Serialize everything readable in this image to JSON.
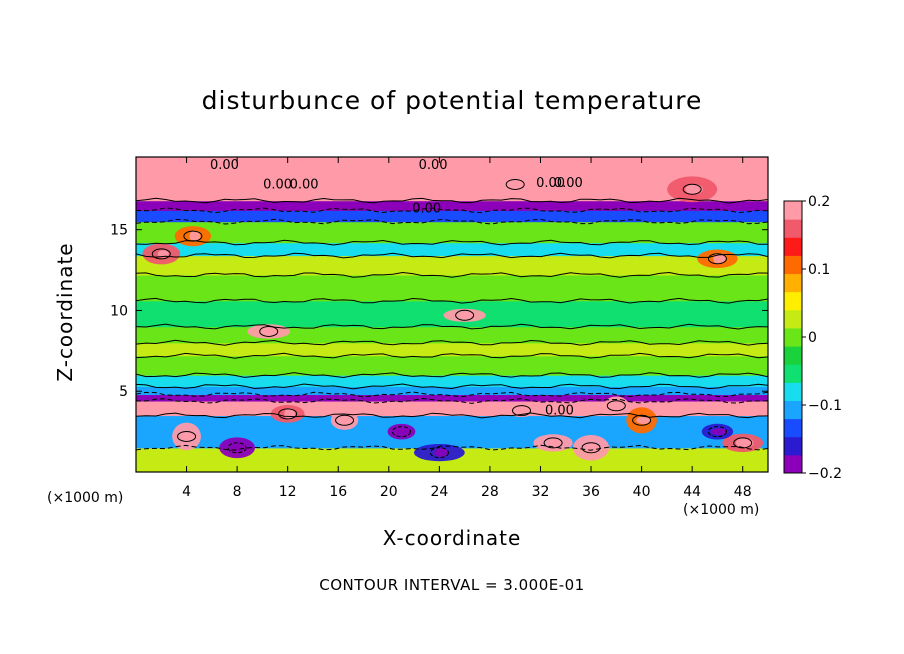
{
  "chart_data": {
    "type": "heatmap",
    "title": "disturbunce of potential temperature",
    "xlabel": "X-coordinate",
    "ylabel": "Z-coordinate",
    "x_unit_note": "(×1000 m)",
    "y_unit_note": "(×1000 m)",
    "footnote": "CONTOUR INTERVAL = 3.000E-01",
    "x_range": [
      0,
      50
    ],
    "y_range": [
      0,
      19.5
    ],
    "x_ticks": [
      4,
      8,
      12,
      16,
      20,
      24,
      28,
      32,
      36,
      40,
      44,
      48
    ],
    "y_ticks": [
      5,
      10,
      15
    ],
    "colorbar": {
      "range": [
        -0.2,
        0.2
      ],
      "tick_values": [
        0.2,
        0.1,
        0,
        -0.1,
        -0.2
      ],
      "tick_labels": [
        "0.2",
        "0.1",
        "0",
        "−0.1",
        "−0.2"
      ],
      "colors": [
        "#8b00b8",
        "#2a1ad0",
        "#1a4cff",
        "#1aa5ff",
        "#18ddee",
        "#10e070",
        "#1ad23c",
        "#6ae618",
        "#c6ea14",
        "#ffee00",
        "#ffb000",
        "#ff6a00",
        "#ff1a1a",
        "#f05a6a",
        "#ff9aa8"
      ]
    },
    "contour_interval": 0.3,
    "contour_labels": [
      {
        "x": 7.0,
        "z": 19.0,
        "text": "0.00"
      },
      {
        "x": 23.5,
        "z": 19.0,
        "text": "0.00"
      },
      {
        "x": 11.2,
        "z": 17.8,
        "text": "0.00"
      },
      {
        "x": 13.3,
        "z": 17.8,
        "text": "0.00"
      },
      {
        "x": 32.8,
        "z": 17.9,
        "text": "0.00"
      },
      {
        "x": 34.2,
        "z": 17.9,
        "text": "0.00"
      },
      {
        "x": 23.0,
        "z": 16.3,
        "text": "0.00"
      },
      {
        "x": 33.5,
        "z": 3.8,
        "text": "0.00"
      }
    ],
    "bands": [
      {
        "z0": 0.0,
        "z1": 1.5,
        "value": 0.02
      },
      {
        "z0": 1.5,
        "z1": 3.5,
        "value": -0.12
      },
      {
        "z0": 3.5,
        "z1": 4.4,
        "value": 0.2
      },
      {
        "z0": 4.4,
        "z1": 4.8,
        "value": -0.18
      },
      {
        "z0": 4.8,
        "z1": 5.3,
        "value": -0.12
      },
      {
        "z0": 5.3,
        "z1": 6.0,
        "value": -0.07
      },
      {
        "z0": 6.0,
        "z1": 7.2,
        "value": -0.01
      },
      {
        "z0": 7.2,
        "z1": 8.0,
        "value": 0.02
      },
      {
        "z0": 8.0,
        "z1": 9.0,
        "value": 0.0
      },
      {
        "z0": 9.0,
        "z1": 10.6,
        "value": -0.06
      },
      {
        "z0": 10.6,
        "z1": 12.2,
        "value": 0.0
      },
      {
        "z0": 12.2,
        "z1": 13.4,
        "value": 0.03
      },
      {
        "z0": 13.4,
        "z1": 14.2,
        "value": -0.07
      },
      {
        "z0": 14.2,
        "z1": 15.5,
        "value": 0.01
      },
      {
        "z0": 15.5,
        "z1": 16.2,
        "value": -0.13
      },
      {
        "z0": 16.2,
        "z1": 16.8,
        "value": -0.18
      },
      {
        "z0": 16.8,
        "z1": 19.5,
        "value": 0.2
      }
    ],
    "features": [
      {
        "x": 2.0,
        "z": 13.5,
        "value": 0.15
      },
      {
        "x": 4.5,
        "z": 14.6,
        "value": 0.12
      },
      {
        "x": 46.0,
        "z": 13.2,
        "value": 0.12
      },
      {
        "x": 26.0,
        "z": 9.7,
        "value": 0.2
      },
      {
        "x": 10.5,
        "z": 8.7,
        "value": 0.2
      },
      {
        "x": 30.5,
        "z": 3.8,
        "value": 0.2
      },
      {
        "x": 16.5,
        "z": 3.2,
        "value": 0.2
      },
      {
        "x": 8.0,
        "z": 1.5,
        "value": -0.2
      },
      {
        "x": 4.0,
        "z": 2.2,
        "value": 0.18
      },
      {
        "x": 33.0,
        "z": 1.8,
        "value": 0.2
      },
      {
        "x": 12.0,
        "z": 3.6,
        "value": 0.15
      },
      {
        "x": 40.0,
        "z": 3.2,
        "value": 0.12
      },
      {
        "x": 48.0,
        "z": 1.8,
        "value": 0.15
      },
      {
        "x": 21.0,
        "z": 2.5,
        "value": -0.18
      },
      {
        "x": 38.0,
        "z": 4.1,
        "value": 0.2
      },
      {
        "x": 24.0,
        "z": 1.2,
        "value": -0.16
      },
      {
        "x": 36.0,
        "z": 1.5,
        "value": 0.18
      },
      {
        "x": 46.0,
        "z": 2.5,
        "value": -0.15
      },
      {
        "x": 30.0,
        "z": 17.8,
        "value": 0.2
      },
      {
        "x": 44.0,
        "z": 17.5,
        "value": 0.15
      }
    ]
  }
}
